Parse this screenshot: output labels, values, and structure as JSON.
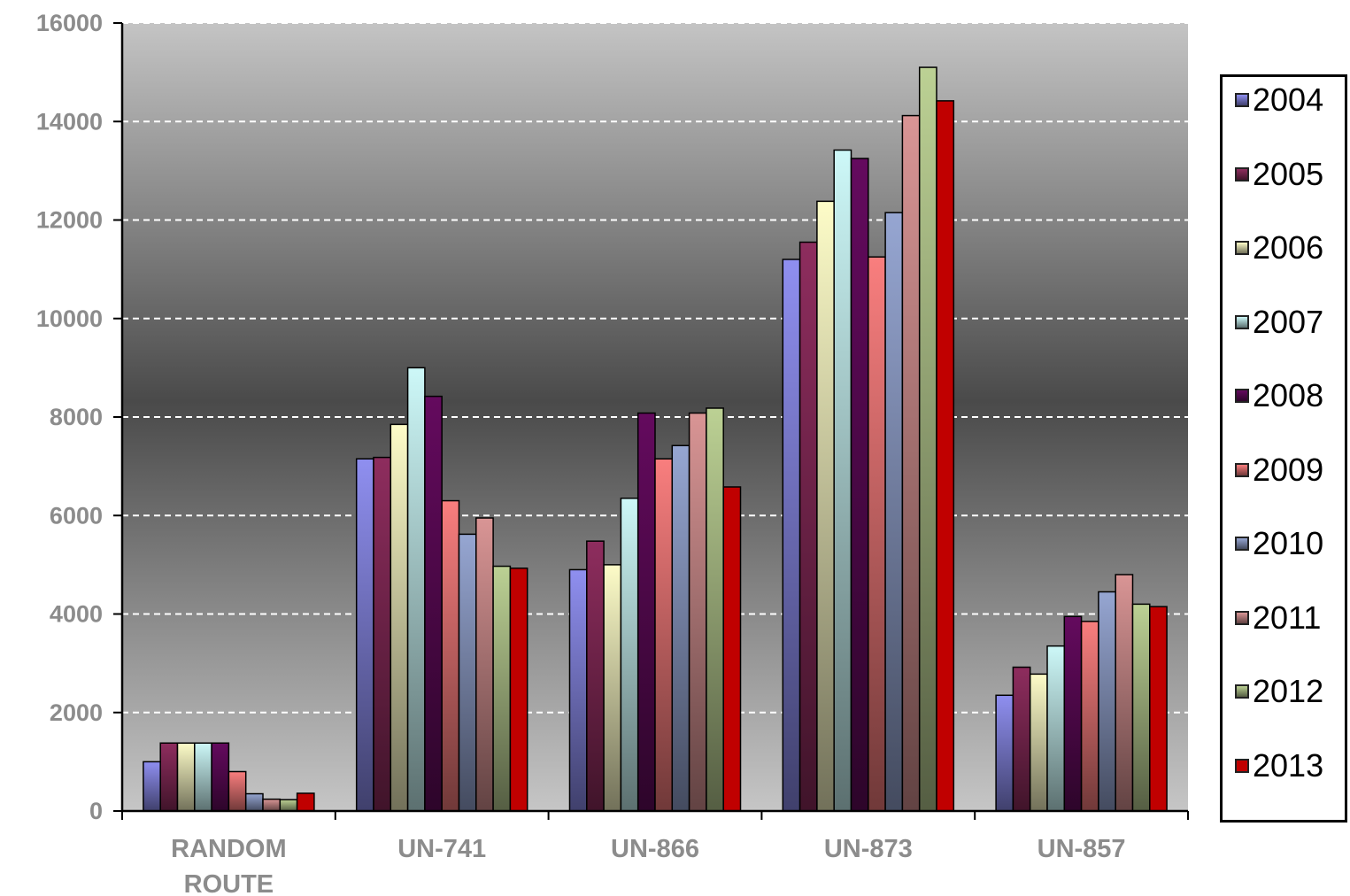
{
  "chart_data": {
    "type": "bar",
    "categories": [
      "RANDOM ROUTE",
      "UN-741",
      "UN-866",
      "UN-873",
      "UN-857"
    ],
    "category_lines": [
      [
        "RANDOM",
        "ROUTE"
      ],
      [
        "UN-741"
      ],
      [
        "UN-866"
      ],
      [
        "UN-873"
      ],
      [
        "UN-857"
      ]
    ],
    "ylim": [
      0,
      16000
    ],
    "yticks": [
      "0",
      "2000",
      "4000",
      "6000",
      "8000",
      "10000",
      "12000",
      "14000",
      "16000"
    ],
    "grid": true,
    "legend_position": "right",
    "series": [
      {
        "name": "2004",
        "color": "#8f8ff0",
        "values": [
          1000,
          7150,
          4900,
          11200,
          2350
        ]
      },
      {
        "name": "2005",
        "color": "#8e2d5e",
        "values": [
          1380,
          7180,
          5480,
          11550,
          2920
        ]
      },
      {
        "name": "2006",
        "color": "#fdfcc8",
        "values": [
          1380,
          7850,
          5000,
          12380,
          2780
        ]
      },
      {
        "name": "2007",
        "color": "#cdf8f8",
        "values": [
          1380,
          9000,
          6350,
          13420,
          3350
        ]
      },
      {
        "name": "2008",
        "color": "#640a5e",
        "values": [
          1380,
          8420,
          8080,
          13250,
          3950
        ]
      },
      {
        "name": "2009",
        "color": "#f97e7e",
        "values": [
          800,
          6300,
          7150,
          11250,
          3850
        ]
      },
      {
        "name": "2010",
        "color": "#96a6d2",
        "values": [
          350,
          5620,
          7420,
          12150,
          4450
        ]
      },
      {
        "name": "2011",
        "color": "#d99595",
        "values": [
          240,
          5950,
          8080,
          14120,
          4800
        ]
      },
      {
        "name": "2012",
        "color": "#bcd194",
        "values": [
          230,
          4970,
          8180,
          15100,
          4200
        ]
      },
      {
        "name": "2013",
        "color": "#c00000",
        "values": [
          360,
          4930,
          6580,
          14420,
          4150
        ]
      }
    ]
  }
}
